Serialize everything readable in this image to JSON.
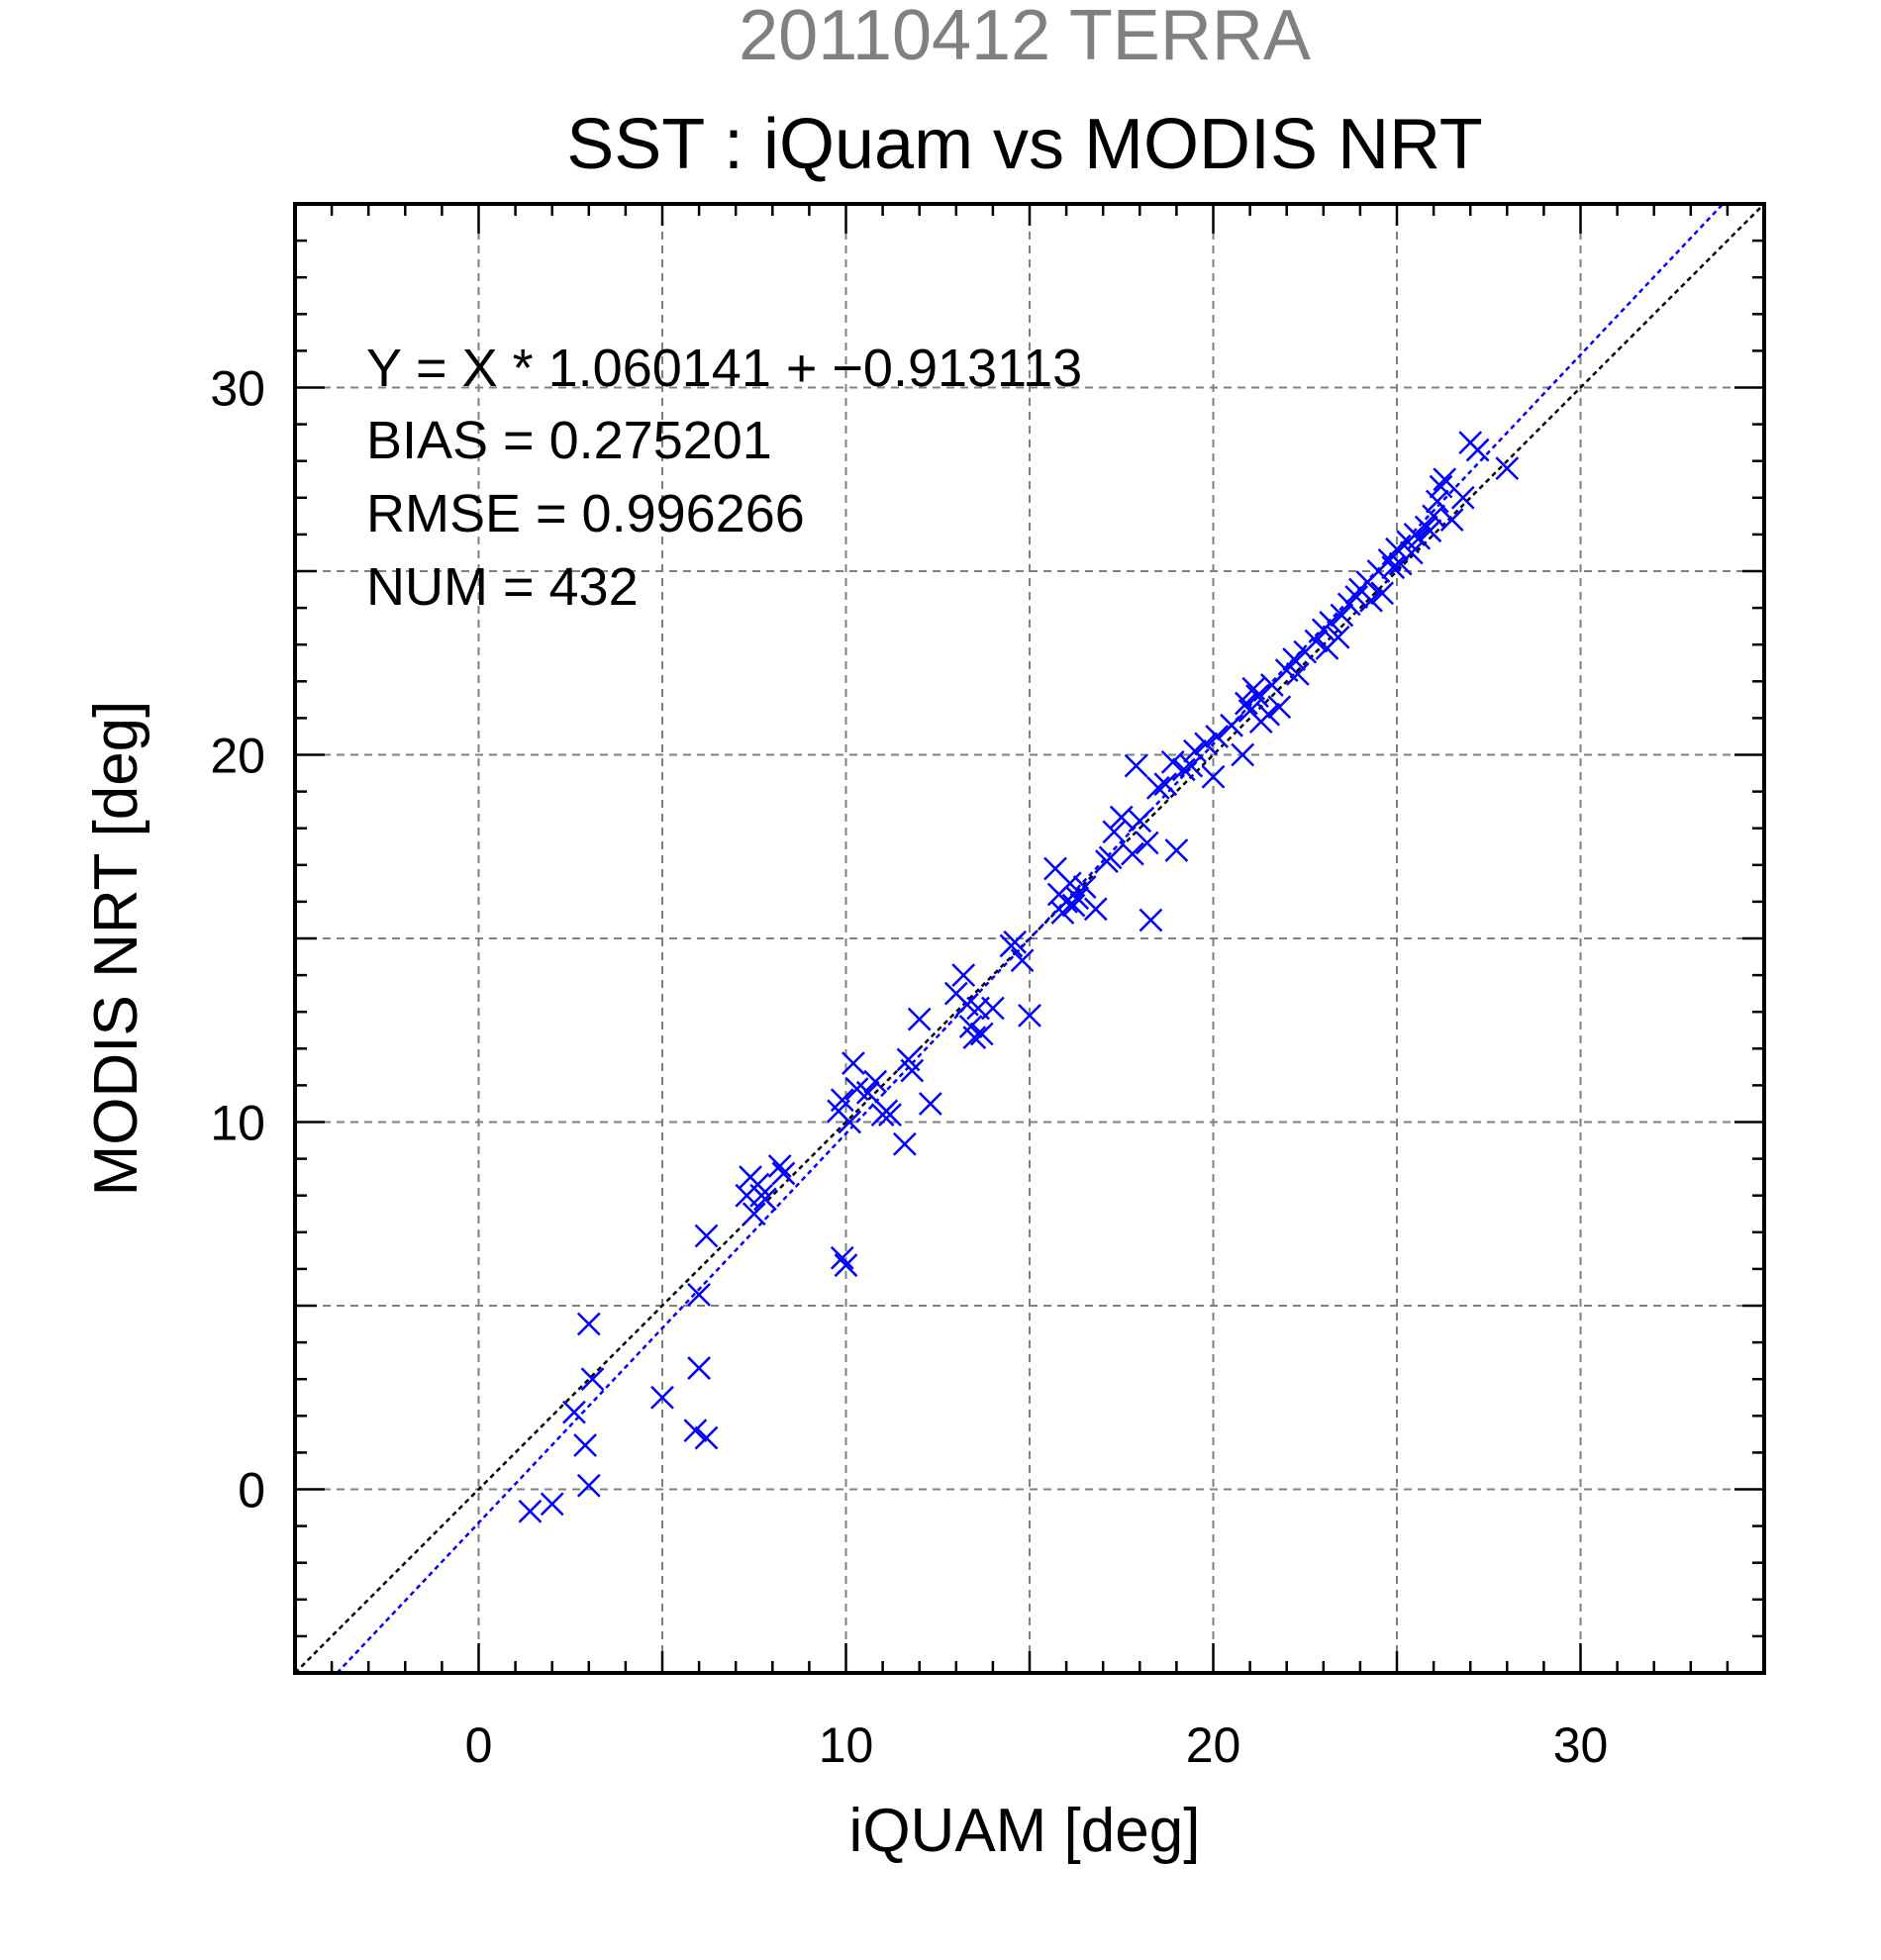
{
  "chart_data": {
    "type": "scatter",
    "suptitle": "20110412 TERRA",
    "title": "SST : iQuam vs MODIS NRT",
    "xlabel": "iQUAM [deg]",
    "ylabel": "MODIS NRT [deg]",
    "xlim": [
      -5,
      35
    ],
    "ylim": [
      -5,
      35
    ],
    "xticks": [
      "0",
      "10",
      "20",
      "30"
    ],
    "yticks": [
      "0",
      "10",
      "20",
      "30"
    ],
    "grid": true,
    "colors": {
      "points": "#0000ff",
      "fit_line": "#0000ff",
      "one_to_one_line": "#000000",
      "suptitle": "#808080"
    },
    "stats": [
      "Y = X * 1.060141 + −0.913113",
      "BIAS = 0.275201",
      "RMSE = 0.996266",
      "NUM = 432"
    ],
    "fit_line": {
      "slope": 1.060141,
      "intercept": -0.913113
    },
    "one_to_one_line": {
      "slope": 1,
      "intercept": 0
    },
    "series": [
      {
        "marker": "x",
        "x": [
          1.4,
          2.0,
          2.6,
          2.9,
          3.0,
          3.0,
          3.1,
          5.0,
          5.9,
          6.0,
          6.0,
          6.2,
          6.2,
          7.3,
          7.4,
          7.5,
          7.6,
          7.7,
          7.8,
          8.2,
          8.3,
          9.8,
          9.9,
          9.9,
          10.0,
          10.1,
          10.2,
          10.3,
          10.6,
          10.8,
          11.0,
          11.1,
          11.2,
          11.6,
          11.7,
          11.8,
          12.0,
          12.3,
          13.0,
          13.2,
          13.3,
          13.4,
          13.5,
          13.6,
          13.7,
          14.0,
          14.5,
          14.6,
          14.8,
          15.0,
          15.7,
          15.8,
          15.9,
          16.0,
          16.1,
          16.2,
          16.3,
          16.5,
          16.8,
          17.1,
          17.2,
          17.3,
          17.5,
          17.8,
          17.9,
          18.0,
          18.2,
          18.3,
          18.5,
          18.7,
          18.9,
          19.0,
          19.2,
          19.4,
          19.5,
          19.8,
          20.0,
          20.1,
          20.5,
          20.8,
          20.9,
          21.0,
          21.1,
          21.2,
          21.3,
          21.5,
          21.6,
          21.8,
          22.0,
          22.2,
          22.3,
          22.5,
          22.8,
          23.0,
          23.1,
          23.2,
          23.4,
          23.5,
          23.7,
          23.9,
          24.0,
          24.2,
          24.3,
          24.5,
          24.6,
          24.8,
          24.9,
          25.0,
          25.1,
          25.3,
          25.4,
          25.5,
          25.6,
          25.8,
          25.9,
          26.0,
          26.1,
          26.2,
          26.3,
          26.5,
          26.8,
          27.0,
          27.2,
          28.0
        ],
        "y": [
          -0.6,
          -0.4,
          2.1,
          1.2,
          0.1,
          4.5,
          3.0,
          2.5,
          1.6,
          3.3,
          5.3,
          6.9,
          1.4,
          8.0,
          8.5,
          7.5,
          8.3,
          8.0,
          7.9,
          8.8,
          8.6,
          10.3,
          6.3,
          10.6,
          6.1,
          10.0,
          11.6,
          10.9,
          10.8,
          11.1,
          10.2,
          10.3,
          10.2,
          9.4,
          11.7,
          11.4,
          12.8,
          10.5,
          13.5,
          14.0,
          13.2,
          12.6,
          12.3,
          13.1,
          12.4,
          13.1,
          14.8,
          14.9,
          14.4,
          12.9,
          16.9,
          16.2,
          15.7,
          16.0,
          16.5,
          15.9,
          16.1,
          16.4,
          15.8,
          17.1,
          17.2,
          17.9,
          18.3,
          17.3,
          19.7,
          18.2,
          17.6,
          15.5,
          19.1,
          19.2,
          19.8,
          17.4,
          19.6,
          19.7,
          20.1,
          20.3,
          19.4,
          20.5,
          20.8,
          20.0,
          21.4,
          21.2,
          21.8,
          21.6,
          20.9,
          21.1,
          21.9,
          21.3,
          22.3,
          22.6,
          22.2,
          22.8,
          23.1,
          23.4,
          22.9,
          23.6,
          23.2,
          23.8,
          24.1,
          24.3,
          24.5,
          24.7,
          24.2,
          25.0,
          24.4,
          25.3,
          25.1,
          25.6,
          25.2,
          25.8,
          25.5,
          26.0,
          25.9,
          26.2,
          26.1,
          26.5,
          26.9,
          27.3,
          27.5,
          26.4,
          27.0,
          28.5,
          28.3,
          27.8
        ]
      }
    ]
  }
}
